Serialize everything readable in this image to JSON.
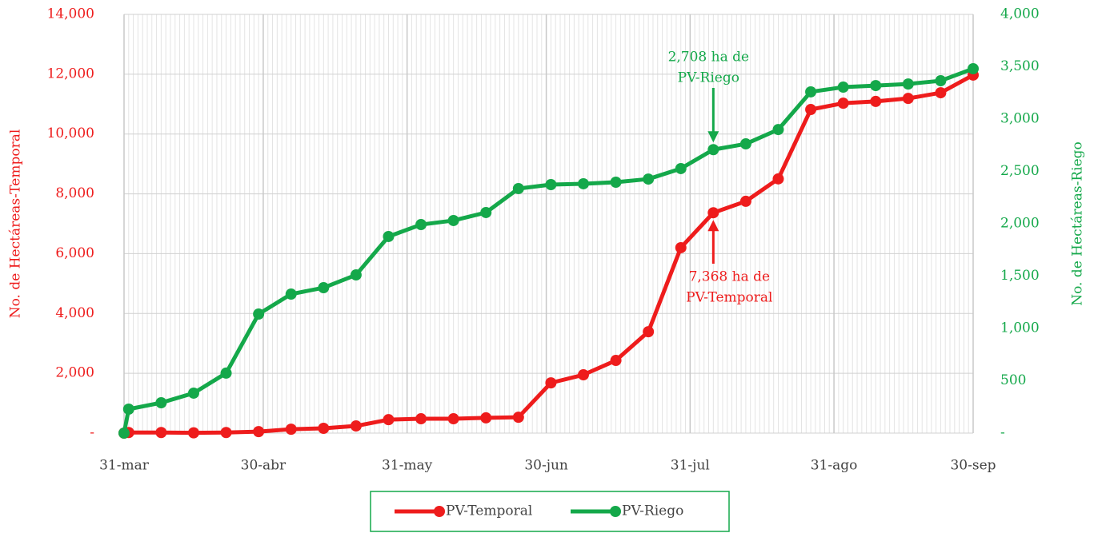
{
  "chart_data": {
    "type": "line",
    "x": [
      0,
      1,
      8,
      15,
      22,
      29,
      36,
      43,
      50,
      57,
      64,
      71,
      78,
      85,
      92,
      99,
      106,
      113,
      120,
      127,
      134,
      141,
      148,
      155,
      162,
      169,
      176,
      183
    ],
    "xlim": [
      0,
      183
    ],
    "xticks": [
      {
        "value": 0,
        "label": "31-mar"
      },
      {
        "value": 30,
        "label": "30-abr"
      },
      {
        "value": 61,
        "label": "31-may"
      },
      {
        "value": 91,
        "label": "30-jun"
      },
      {
        "value": 122,
        "label": "31-jul"
      },
      {
        "value": 153,
        "label": "31-ago"
      },
      {
        "value": 183,
        "label": "30-sep"
      }
    ],
    "ylabel": "No. de Hectáreas-Temporal",
    "y2label": "No. de Hectáreas-Riego",
    "ylim": [
      0,
      14000
    ],
    "yticks": [
      {
        "value": 0,
        "label": "-"
      },
      {
        "value": 2000,
        "label": "2,000"
      },
      {
        "value": 4000,
        "label": "4,000"
      },
      {
        "value": 6000,
        "label": "6,000"
      },
      {
        "value": 8000,
        "label": "8,000"
      },
      {
        "value": 10000,
        "label": "10,000"
      },
      {
        "value": 12000,
        "label": "12,000"
      },
      {
        "value": 14000,
        "label": "14,000"
      }
    ],
    "y2lim": [
      0,
      4000
    ],
    "y2ticks": [
      {
        "value": 0,
        "label": "-"
      },
      500,
      {
        "value": 1000,
        "label": "1,000"
      },
      {
        "value": 1500,
        "label": "1,500"
      },
      {
        "value": 2000,
        "label": "2,000"
      },
      {
        "value": 2500,
        "label": "2,500"
      },
      {
        "value": 3000,
        "label": "3,000"
      },
      {
        "value": 3500,
        "label": "3,500"
      },
      {
        "value": 4000,
        "label": "4,000"
      }
    ],
    "grid": true,
    "legend": "bottom",
    "series": [
      {
        "name": "PV-Temporal",
        "color": "#ee1c1c",
        "axis": "y",
        "values": [
          0,
          20,
          20,
          10,
          20,
          50,
          130,
          160,
          240,
          450,
          480,
          480,
          510,
          530,
          1680,
          1950,
          2430,
          3390,
          6200,
          7368,
          7750,
          8500,
          10820,
          11030,
          11090,
          11190,
          11380,
          11970
        ]
      },
      {
        "name": "PV-Riego",
        "color": "#14a84a",
        "axis": "y2",
        "values": [
          0,
          229,
          290,
          382,
          573,
          1137,
          1328,
          1389,
          1511,
          1878,
          1992,
          2031,
          2107,
          2336,
          2374,
          2382,
          2397,
          2427,
          2527,
          2708,
          2763,
          2900,
          3260,
          3305,
          3320,
          3335,
          3366,
          3481
        ]
      }
    ],
    "annotations": [
      {
        "text": [
          "2,708 ha de",
          "PV-Riego"
        ],
        "color": "#14a84a"
      },
      {
        "text": [
          "7,368 ha de",
          "PV-Temporal"
        ],
        "color": "#ee1c1c"
      }
    ]
  }
}
